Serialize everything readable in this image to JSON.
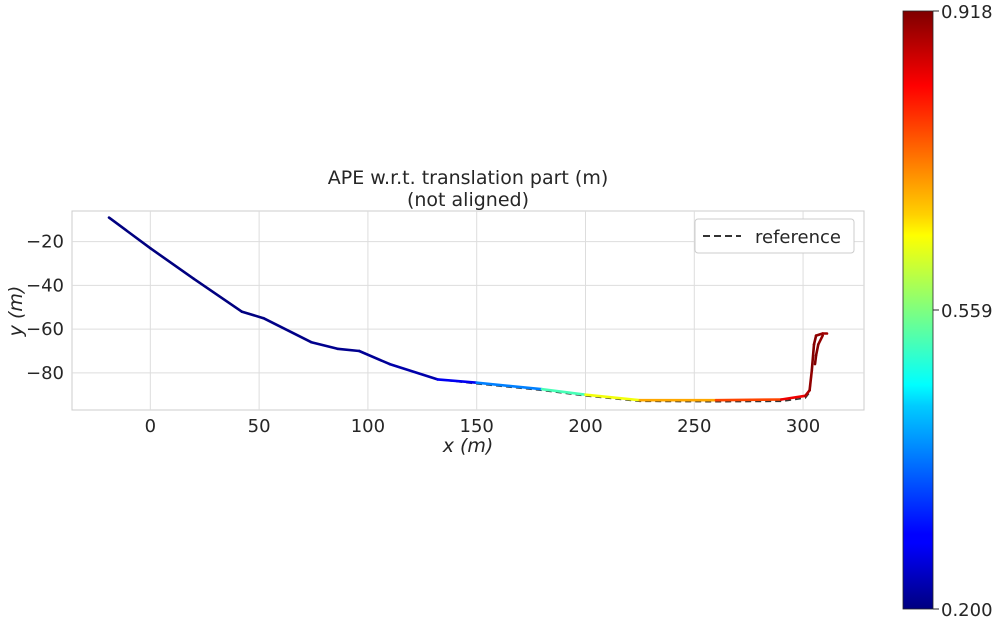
{
  "chart_data": {
    "type": "line",
    "title": "APE w.r.t. translation part (m)",
    "subtitle": "(not aligned)",
    "xlabel": "x (m)",
    "ylabel": "y (m)",
    "xlim": [
      -36,
      328
    ],
    "ylim": [
      -97,
      -6
    ],
    "xticks": [
      0,
      50,
      100,
      150,
      200,
      250,
      300
    ],
    "yticks": [
      -20,
      -40,
      -60,
      -80
    ],
    "xtick_labels": [
      "0",
      "50",
      "100",
      "150",
      "200",
      "250",
      "300"
    ],
    "ytick_labels": [
      "−20",
      "−40",
      "−60",
      "−80"
    ],
    "grid": true,
    "legend": {
      "position": "top-right",
      "entries": [
        "reference"
      ]
    },
    "series": [
      {
        "name": "reference",
        "style": "dashed",
        "color": "#333333",
        "x": [
          -19,
          0,
          20,
          42,
          52,
          74,
          86,
          96,
          110,
          132,
          150,
          180,
          200,
          225,
          260,
          290,
          301,
          303,
          304,
          305,
          306,
          309,
          311
        ],
        "y": [
          -9,
          -23,
          -37,
          -52,
          -55,
          -66,
          -69,
          -70,
          -76,
          -83,
          -85,
          -88,
          -90.5,
          -93,
          -93.2,
          -93,
          -91.5,
          -89,
          -80,
          -68,
          -63,
          -62,
          -62
        ]
      },
      {
        "name": "",
        "style": "colormap",
        "x": [
          -19,
          0,
          20,
          42,
          52,
          74,
          86,
          96,
          110,
          132,
          150,
          180,
          200,
          225,
          260,
          290,
          301,
          303,
          304,
          305,
          306,
          309,
          311
        ],
        "y": [
          -9,
          -23,
          -37,
          -52,
          -55,
          -66,
          -69,
          -70,
          -76,
          -83,
          -84.5,
          -87.5,
          -90,
          -92.5,
          -92.5,
          -92.2,
          -90.5,
          -88,
          -79,
          -67,
          -63,
          -62,
          -62
        ],
        "ape": [
          0.2,
          0.2,
          0.2,
          0.2,
          0.2,
          0.21,
          0.21,
          0.21,
          0.22,
          0.24,
          0.32,
          0.44,
          0.6,
          0.68,
          0.74,
          0.82,
          0.86,
          0.9,
          0.91,
          0.92,
          0.91,
          0.9,
          0.89
        ]
      },
      {
        "name": "",
        "style": "colormap",
        "x": [
          309,
          307,
          306,
          305.5
        ],
        "y": [
          -63,
          -67,
          -72,
          -76
        ],
        "ape": [
          0.9,
          0.91,
          0.92,
          0.93
        ]
      }
    ],
    "colorbar": {
      "min": 0.2,
      "max": 0.918,
      "tick_labels": [
        "0.918",
        "0.559",
        "0.200"
      ],
      "tick_values": [
        0.918,
        0.559,
        0.2
      ],
      "colormap": "jet"
    }
  }
}
